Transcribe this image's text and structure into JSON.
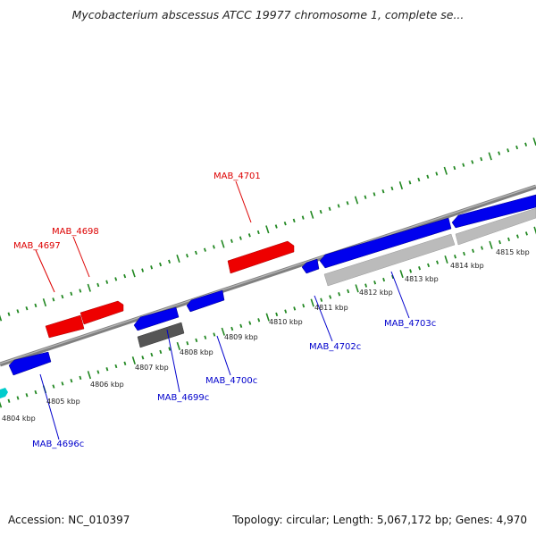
{
  "title": "Mycobacterium abscessus ATCC 19977 chromosome 1, complete se...",
  "footer": {
    "accession": "Accession: NC_010397",
    "summary": "Topology: circular; Length: 5,067,172 bp; Genes: 4,970"
  },
  "colors": {
    "forward_gene": "#ee0000",
    "reverse_gene": "#0000ee",
    "pseudo_gene": "#555555",
    "highlight_gene": "#bbbbbb",
    "cyan_gene": "#00cccc",
    "tick": "#228822",
    "backbone": "#808080"
  },
  "ticks": [
    {
      "label": "4804 kbp"
    },
    {
      "label": "4805 kbp"
    },
    {
      "label": "4806 kbp"
    },
    {
      "label": "4807 kbp"
    },
    {
      "label": "4808 kbp"
    },
    {
      "label": "4809 kbp"
    },
    {
      "label": "4810 kbp"
    },
    {
      "label": "4811 kbp"
    },
    {
      "label": "4812 kbp"
    },
    {
      "label": "4813 kbp"
    },
    {
      "label": "4814 kbp"
    },
    {
      "label": "4815 kbp"
    }
  ],
  "gene_labels": {
    "forward": [
      "MAB_4697",
      "MAB_4698",
      "MAB_4701"
    ],
    "reverse": [
      "MAB_4696c",
      "MAB_4699c",
      "MAB_4700c",
      "MAB_4702c",
      "MAB_4703c"
    ]
  }
}
